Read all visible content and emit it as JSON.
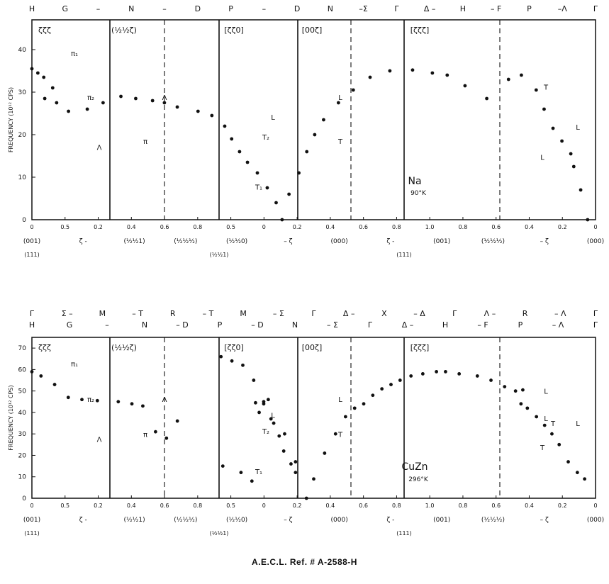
{
  "footer": "A.E.C.L. Ref. # A-2588-H",
  "chart_data": [
    {
      "type": "scatter",
      "id": "na",
      "ylabel": "FREQUENCY (10¹² CPS)",
      "ylim": [
        0,
        47
      ],
      "yticks": [
        "0",
        "10",
        "20",
        "30",
        "40"
      ],
      "material": "Na",
      "temperature": "90°K",
      "top_labels": [
        "H",
        "G",
        "–",
        "N",
        "–",
        "D",
        "P",
        "–",
        "D",
        "N",
        "–Σ",
        "Γ",
        "Δ –",
        "H",
        "– F",
        "P",
        "–Λ",
        "Γ"
      ],
      "section_labels": [
        "ζζζ",
        "(½½ζ)",
        "[ζζ0]",
        "[00ζ]",
        "[ζζζ]"
      ],
      "bottom_ticks": [
        "0",
        "0.5",
        "0.2",
        "0.4",
        "0.6",
        "0.8",
        "0.5",
        "0",
        "0.2",
        "0.4",
        "0.6",
        "0.8",
        "1.0",
        "0.8",
        "0.6",
        "0.4",
        "0.2",
        "0"
      ],
      "bottom_rows": [
        [
          "(001)",
          "ζ -",
          "(½½1)",
          "(½½½)",
          "(½½0)",
          "– ζ",
          "(000)",
          "ζ -",
          "(001)",
          "(½½½)",
          "– ζ",
          "(000)"
        ],
        [
          "(111)",
          "(½½1)",
          "(111)"
        ]
      ],
      "branch_labels": [
        "π₁",
        "π₂",
        "Λ",
        "Λ",
        "π",
        "L",
        "T₂",
        "T₁",
        "L",
        "T",
        "L",
        "L",
        "T"
      ],
      "series": [
        {
          "points": [
            [
              0,
              35.5
            ],
            [
              0.06,
              34.5
            ],
            [
              0.12,
              33.5
            ],
            [
              0.21,
              31
            ],
            [
              0.13,
              28.5
            ],
            [
              0.25,
              27.5
            ],
            [
              0.37,
              25.5
            ],
            [
              0.56,
              26
            ],
            [
              0.72,
              27.5
            ],
            [
              0.9,
              29
            ],
            [
              1.05,
              28.5
            ],
            [
              1.22,
              28
            ],
            [
              1.34,
              27.5
            ],
            [
              1.47,
              26.5
            ],
            [
              1.68,
              25.5
            ],
            [
              1.82,
              24.5
            ],
            [
              1.95,
              22
            ],
            [
              2.02,
              19
            ],
            [
              2.1,
              16
            ],
            [
              2.18,
              13.5
            ],
            [
              2.28,
              11
            ],
            [
              2.38,
              7.5
            ],
            [
              2.47,
              4
            ],
            [
              2.53,
              0
            ],
            [
              2.6,
              6
            ],
            [
              2.7,
              11
            ],
            [
              2.78,
              16
            ],
            [
              2.86,
              20
            ],
            [
              2.95,
              23.5
            ],
            [
              3.1,
              27.5
            ],
            [
              3.25,
              30.5
            ],
            [
              3.42,
              33.5
            ],
            [
              3.62,
              35
            ],
            [
              3.85,
              35.2
            ],
            [
              4.05,
              34.5
            ],
            [
              4.2,
              34
            ],
            [
              4.38,
              31.5
            ],
            [
              4.6,
              28.5
            ],
            [
              4.82,
              33
            ],
            [
              4.95,
              34
            ],
            [
              5.1,
              30.5
            ],
            [
              5.18,
              26
            ],
            [
              5.27,
              21.5
            ],
            [
              5.36,
              18.5
            ],
            [
              5.45,
              15.5
            ],
            [
              5.48,
              12.5
            ],
            [
              5.55,
              7
            ],
            [
              5.62,
              0
            ]
          ]
        }
      ]
    },
    {
      "type": "scatter",
      "id": "cuzn",
      "ylabel": "FREQUENCY (10¹² CPS)",
      "ylim": [
        0,
        75
      ],
      "yticks": [
        "0",
        "10",
        "20",
        "30",
        "40",
        "50",
        "60",
        "70"
      ],
      "material": "CuZn",
      "temperature": "296°K",
      "top_labels_1": [
        "Γ",
        "Σ –",
        "M",
        "– T",
        "R",
        "– T",
        "M",
        "– Σ",
        "Γ",
        "Δ –",
        "X",
        "– Δ",
        "Γ",
        "Λ –",
        "R",
        "– Λ",
        "Γ"
      ],
      "top_labels_2": [
        "H",
        "G",
        "–",
        "N",
        "– D",
        "P",
        "– D",
        "N",
        "– Σ",
        "Γ",
        "Δ –",
        "H",
        "– F",
        "P",
        "– Λ",
        "Γ"
      ],
      "section_labels": [
        "ζζζ",
        "(½½ζ)",
        "[ζζ0]",
        "[00ζ]",
        "[ζζζ]"
      ],
      "bottom_ticks": [
        "0",
        "0.5",
        "0.2",
        "0.4",
        "0.6",
        "0.8",
        "0.5",
        "0",
        "0.2",
        "0.4",
        "0.6",
        "0.8",
        "1.0",
        "0.8",
        "0.6",
        "0.4",
        "0.2",
        "0"
      ],
      "bottom_rows": [
        [
          "(001)",
          "ζ -",
          "(½½1)",
          "(½½½)",
          "(½½0)",
          "– ζ",
          "(000)",
          "ζ -",
          "(001)",
          "(½½½)",
          "– ζ",
          "(000)"
        ],
        [
          "(111)",
          "(½½1)",
          "(111)"
        ]
      ],
      "branch_labels": [
        "π₁",
        "π₂",
        "Λ",
        "Λ",
        "π",
        "L",
        "T₂",
        "T₁",
        "L",
        "T",
        "L",
        "T",
        "L",
        "L",
        "T"
      ],
      "series": [
        {
          "points": [
            [
              0,
              59
            ],
            [
              0.1,
              57
            ],
            [
              0.25,
              53
            ],
            [
              0.4,
              47
            ],
            [
              0.55,
              46
            ],
            [
              0.72,
              45.5
            ],
            [
              0.95,
              45
            ],
            [
              1.1,
              44
            ],
            [
              1.22,
              43
            ],
            [
              1.36,
              31
            ],
            [
              1.48,
              28
            ],
            [
              1.6,
              36
            ],
            [
              2.08,
              66
            ],
            [
              2.2,
              64
            ],
            [
              2.32,
              62
            ],
            [
              2.44,
              55
            ],
            [
              2.55,
              44
            ],
            [
              2.63,
              37
            ],
            [
              2.72,
              29
            ],
            [
              2.77,
              22
            ],
            [
              2.85,
              16
            ],
            [
              2.9,
              12
            ],
            [
              2.6,
              46
            ],
            [
              2.55,
              45
            ],
            [
              2.46,
              44.5
            ],
            [
              2.5,
              40
            ],
            [
              2.66,
              35
            ],
            [
              2.78,
              30
            ],
            [
              2.9,
              17
            ],
            [
              2.1,
              15
            ],
            [
              2.3,
              12
            ],
            [
              2.42,
              8
            ],
            [
              3.02,
              0
            ],
            [
              3.1,
              9
            ],
            [
              3.22,
              21
            ],
            [
              3.34,
              30
            ],
            [
              3.45,
              38
            ],
            [
              3.55,
              42
            ],
            [
              3.65,
              44
            ],
            [
              3.75,
              48
            ],
            [
              3.85,
              51
            ],
            [
              3.95,
              53
            ],
            [
              4.05,
              55
            ],
            [
              4.17,
              57
            ],
            [
              4.3,
              58
            ],
            [
              4.45,
              59
            ],
            [
              4.55,
              59
            ],
            [
              4.7,
              58
            ],
            [
              4.9,
              57
            ],
            [
              5.05,
              55
            ],
            [
              5.2,
              52
            ],
            [
              5.32,
              50
            ],
            [
              5.4,
              50.5
            ],
            [
              5.38,
              44
            ],
            [
              5.45,
              42
            ],
            [
              5.55,
              38
            ],
            [
              5.64,
              34
            ],
            [
              5.72,
              30
            ],
            [
              5.8,
              25
            ],
            [
              5.9,
              17
            ],
            [
              6.0,
              12
            ],
            [
              6.08,
              9
            ]
          ]
        }
      ]
    }
  ]
}
